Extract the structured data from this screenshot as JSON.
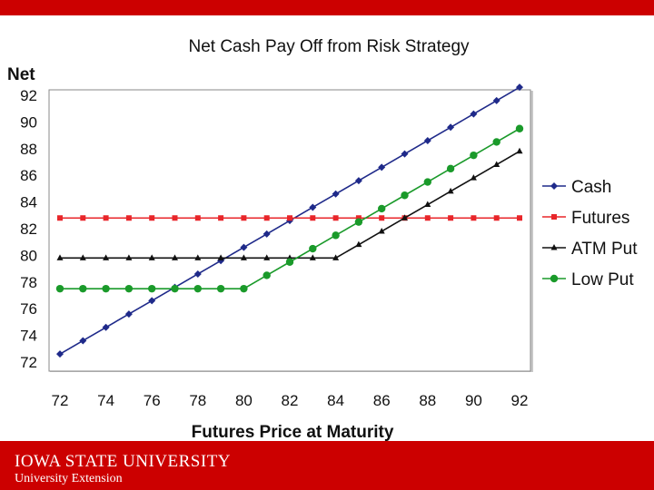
{
  "chart_data": {
    "type": "line",
    "title": "Net Cash Pay Off from Risk Strategy",
    "ylabel": "Net",
    "xlabel": "Futures Price at Maturity",
    "x": [
      72,
      73,
      74,
      75,
      76,
      77,
      78,
      79,
      80,
      81,
      82,
      83,
      84,
      85,
      86,
      87,
      88,
      89,
      90,
      91,
      92
    ],
    "x_ticks": [
      "72",
      "74",
      "76",
      "78",
      "80",
      "82",
      "84",
      "86",
      "88",
      "90",
      "92"
    ],
    "y_ticks": [
      "72",
      "74",
      "76",
      "78",
      "80",
      "82",
      "84",
      "86",
      "88",
      "90",
      "92"
    ],
    "xlim": [
      72,
      92
    ],
    "ylim": [
      72,
      92
    ],
    "legend_position": "right",
    "series": [
      {
        "name": "Cash",
        "color": "#1f2a8a",
        "marker": "diamond",
        "values": [
          72.6,
          73.6,
          74.6,
          75.6,
          76.6,
          77.6,
          78.6,
          79.6,
          80.6,
          81.6,
          82.6,
          83.6,
          84.6,
          85.6,
          86.6,
          87.6,
          88.6,
          89.6,
          90.6,
          91.6,
          92.6
        ]
      },
      {
        "name": "Futures",
        "color": "#e8262a",
        "marker": "square",
        "values": [
          82.8,
          82.8,
          82.8,
          82.8,
          82.8,
          82.8,
          82.8,
          82.8,
          82.8,
          82.8,
          82.8,
          82.8,
          82.8,
          82.8,
          82.8,
          82.8,
          82.8,
          82.8,
          82.8,
          82.8,
          82.8
        ]
      },
      {
        "name": "ATM Put",
        "color": "#111111",
        "marker": "triangle",
        "values": [
          79.8,
          79.8,
          79.8,
          79.8,
          79.8,
          79.8,
          79.8,
          79.8,
          79.8,
          79.8,
          79.8,
          79.8,
          79.8,
          80.8,
          81.8,
          82.8,
          83.8,
          84.8,
          85.8,
          86.8,
          87.8
        ]
      },
      {
        "name": "Low Put",
        "color": "#1a9a2a",
        "marker": "circle",
        "values": [
          77.5,
          77.5,
          77.5,
          77.5,
          77.5,
          77.5,
          77.5,
          77.5,
          77.5,
          78.5,
          79.5,
          80.5,
          81.5,
          82.5,
          83.5,
          84.5,
          85.5,
          86.5,
          87.5,
          88.5,
          89.5
        ]
      }
    ]
  },
  "footer": {
    "university": "IOWA STATE UNIVERSITY",
    "unit": "University Extension"
  }
}
